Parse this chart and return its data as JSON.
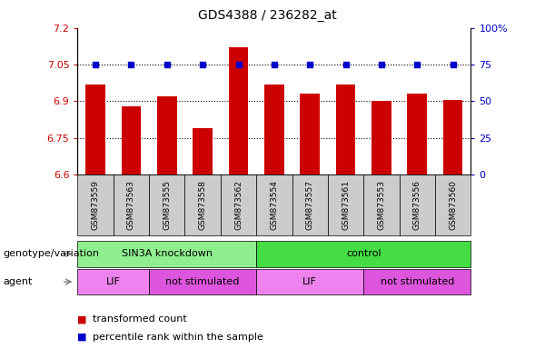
{
  "title": "GDS4388 / 236282_at",
  "samples": [
    "GSM873559",
    "GSM873563",
    "GSM873555",
    "GSM873558",
    "GSM873562",
    "GSM873554",
    "GSM873557",
    "GSM873561",
    "GSM873553",
    "GSM873556",
    "GSM873560"
  ],
  "bar_values": [
    6.97,
    6.88,
    6.92,
    6.79,
    7.12,
    6.97,
    6.93,
    6.97,
    6.9,
    6.93,
    6.905
  ],
  "percentile_values": [
    75,
    75,
    75,
    75,
    75,
    75,
    75,
    75,
    75,
    75,
    75
  ],
  "bar_color": "#cc0000",
  "dot_color": "#0000cc",
  "ylim_left": [
    6.6,
    7.2
  ],
  "ylim_right": [
    0,
    100
  ],
  "yticks_left": [
    6.6,
    6.75,
    6.9,
    7.05,
    7.2
  ],
  "yticks_right": [
    0,
    25,
    50,
    75,
    100
  ],
  "ytick_labels_left": [
    "6.6",
    "6.75",
    "6.9",
    "7.05",
    "7.2"
  ],
  "ytick_labels_right": [
    "0",
    "25",
    "50",
    "75",
    "100%"
  ],
  "gridlines": [
    6.75,
    6.9,
    7.05
  ],
  "genotype_groups": [
    {
      "label": "SIN3A knockdown",
      "start": 0,
      "end": 5,
      "color": "#90ee90"
    },
    {
      "label": "control",
      "start": 5,
      "end": 11,
      "color": "#44dd44"
    }
  ],
  "agent_groups": [
    {
      "label": "LIF",
      "start": 0,
      "end": 2,
      "color": "#ee82ee"
    },
    {
      "label": "not stimulated",
      "start": 2,
      "end": 5,
      "color": "#dd55dd"
    },
    {
      "label": "LIF",
      "start": 5,
      "end": 8,
      "color": "#ee82ee"
    },
    {
      "label": "not stimulated",
      "start": 8,
      "end": 11,
      "color": "#dd55dd"
    }
  ],
  "legend_items": [
    {
      "label": "transformed count",
      "color": "#cc0000"
    },
    {
      "label": "percentile rank within the sample",
      "color": "#0000cc"
    }
  ],
  "bar_width": 0.55,
  "background_color": "#ffffff",
  "tick_label_color_left": "#cc0000",
  "tick_label_color_right": "#0000cc",
  "title_fontsize": 10,
  "axis_fontsize": 8,
  "xtick_fontsize": 6.5,
  "sample_label_color": "#000000",
  "xtick_bg_color": "#cccccc",
  "geno_label": "genotype/variation",
  "agent_label": "agent",
  "row_label_fontsize": 8
}
